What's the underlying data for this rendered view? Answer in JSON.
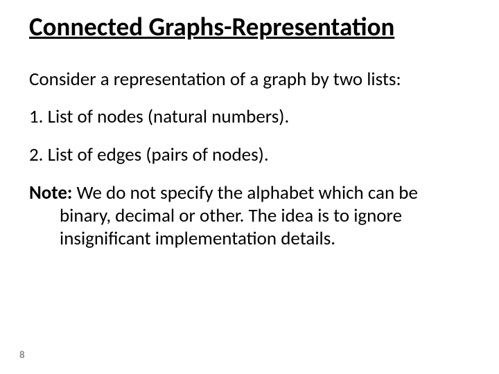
{
  "slide": {
    "title": "Connected Graphs-Representation",
    "intro": "Consider a representation of a graph by two lists:",
    "item1": "1.  List of nodes (natural numbers).",
    "item2": "2.  List of edges (pairs of nodes).",
    "note_label": "Note:",
    "note_text": " We do not specify the alphabet which can be binary, decimal or other. The idea is to ignore insignificant implementation details.",
    "page_number": "8"
  },
  "style": {
    "background_color": "#ffffff",
    "text_color": "#000000",
    "title_fontsize": 37,
    "body_fontsize": 27,
    "pagenum_fontsize": 15,
    "pagenum_color": "#8b8b8b",
    "font_family": "Calibri",
    "slide_width": 720,
    "slide_height": 540
  }
}
